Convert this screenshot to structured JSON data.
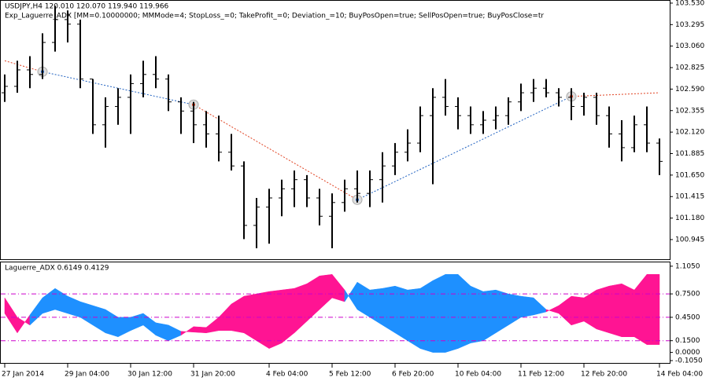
{
  "chart_data": [
    {
      "type": "ohlc",
      "title": "USDJPY,H4  120.010 120.070 119.940 119.966",
      "subtitle": "Exp_Laguerre_ADX [MM=0.10000000; MMMode=4; StopLoss_=0; TakeProfit_=0; Deviation_=10; BuyPosOpen=true; SellPosOpen=true; BuyPosClose=tr",
      "color": "#000000",
      "ohlc": [
        [
          102.55,
          102.75,
          102.45,
          102.62
        ],
        [
          102.62,
          102.9,
          102.55,
          102.8
        ],
        [
          102.8,
          102.95,
          102.6,
          102.75
        ],
        [
          102.75,
          103.2,
          102.7,
          103.1
        ],
        [
          103.1,
          103.5,
          103.0,
          103.35
        ],
        [
          103.35,
          103.45,
          103.1,
          103.3
        ],
        [
          103.3,
          103.35,
          102.6,
          102.7
        ],
        [
          102.7,
          102.7,
          102.1,
          102.2
        ],
        [
          102.2,
          102.5,
          101.95,
          102.4
        ],
        [
          102.4,
          102.6,
          102.2,
          102.5
        ],
        [
          102.5,
          102.75,
          102.1,
          102.65
        ],
        [
          102.65,
          102.9,
          102.5,
          102.75
        ],
        [
          102.75,
          102.95,
          102.6,
          102.7
        ],
        [
          102.7,
          102.75,
          102.35,
          102.45
        ],
        [
          102.45,
          102.5,
          102.1,
          102.35
        ],
        [
          102.35,
          102.45,
          102.0,
          102.2
        ],
        [
          102.2,
          102.35,
          101.95,
          102.1
        ],
        [
          102.1,
          102.3,
          101.8,
          101.9
        ],
        [
          101.9,
          102.1,
          101.7,
          101.75
        ],
        [
          101.75,
          101.8,
          100.95,
          101.1
        ],
        [
          101.1,
          101.4,
          100.85,
          101.3
        ],
        [
          101.3,
          101.5,
          100.9,
          101.4
        ],
        [
          101.4,
          101.6,
          101.2,
          101.5
        ],
        [
          101.5,
          101.7,
          101.3,
          101.6
        ],
        [
          101.6,
          101.65,
          101.3,
          101.4
        ],
        [
          101.4,
          101.5,
          101.1,
          101.2
        ],
        [
          101.2,
          101.45,
          100.85,
          101.35
        ],
        [
          101.35,
          101.6,
          101.25,
          101.5
        ],
        [
          101.5,
          101.7,
          101.35,
          101.45
        ],
        [
          101.45,
          101.7,
          101.3,
          101.6
        ],
        [
          101.6,
          101.9,
          101.35,
          101.75
        ],
        [
          101.75,
          102.0,
          101.65,
          101.9
        ],
        [
          101.9,
          102.15,
          101.8,
          102.0
        ],
        [
          102.0,
          102.4,
          101.9,
          102.3
        ],
        [
          102.3,
          102.6,
          101.55,
          102.5
        ],
        [
          102.5,
          102.7,
          102.3,
          102.4
        ],
        [
          102.4,
          102.5,
          102.15,
          102.3
        ],
        [
          102.3,
          102.4,
          102.1,
          102.2
        ],
        [
          102.2,
          102.35,
          102.1,
          102.25
        ],
        [
          102.25,
          102.4,
          102.15,
          102.3
        ],
        [
          102.3,
          102.5,
          102.2,
          102.45
        ],
        [
          102.45,
          102.65,
          102.35,
          102.55
        ],
        [
          102.55,
          102.7,
          102.45,
          102.6
        ],
        [
          102.6,
          102.7,
          102.5,
          102.55
        ],
        [
          102.55,
          102.6,
          102.4,
          102.5
        ],
        [
          102.5,
          102.6,
          102.25,
          102.4
        ],
        [
          102.4,
          102.55,
          102.3,
          102.5
        ],
        [
          102.5,
          102.55,
          102.2,
          102.3
        ],
        [
          102.3,
          102.4,
          101.95,
          102.1
        ],
        [
          102.1,
          102.25,
          101.8,
          101.95
        ],
        [
          101.95,
          102.3,
          101.9,
          102.2
        ],
        [
          102.2,
          102.4,
          101.9,
          102.0
        ],
        [
          102.0,
          102.05,
          101.65,
          101.8
        ]
      ],
      "categories": [
        "27 Jan 2014",
        null,
        null,
        null,
        null,
        "29 Jan 04:00",
        null,
        null,
        null,
        null,
        "30 Jan 12:00",
        null,
        null,
        null,
        null,
        "31 Jan 20:00",
        null,
        null,
        null,
        null,
        null,
        "4 Feb 04:00",
        null,
        null,
        null,
        null,
        "5 Feb 12:00",
        null,
        null,
        null,
        null,
        "6 Feb 20:00",
        null,
        null,
        null,
        null,
        "10 Feb 04:00",
        null,
        null,
        null,
        null,
        "11 Feb 12:00",
        null,
        null,
        null,
        null,
        "12 Feb 20:00",
        null,
        null,
        null,
        null,
        null,
        "14 Feb 04:00"
      ],
      "trail": {
        "bars": [
          0,
          3,
          15,
          28,
          45,
          52
        ],
        "values": [
          102.9,
          102.78,
          102.42,
          101.38,
          102.51,
          102.55
        ],
        "colors": [
          "#e04020",
          "#1e60c0",
          "#e04020",
          "#1e60c0",
          "#e04020"
        ],
        "markers": [
          1,
          2,
          3,
          4
        ]
      },
      "ylim": [
        100.73,
        103.564
      ],
      "yticks": [
        {
          "value": 103.53,
          "label": "103.530"
        },
        {
          "value": 103.295,
          "label": "103.295"
        },
        {
          "value": 103.06,
          "label": "103.060"
        },
        {
          "value": 102.825,
          "label": "102.825"
        },
        {
          "value": 102.59,
          "label": "102.590"
        },
        {
          "value": 102.355,
          "label": "102.355"
        },
        {
          "value": 102.12,
          "label": "102.120"
        },
        {
          "value": 101.885,
          "label": "101.885"
        },
        {
          "value": 101.65,
          "label": "101.650"
        },
        {
          "value": 101.415,
          "label": "101.415"
        },
        {
          "value": 101.18,
          "label": "101.180"
        },
        {
          "value": 100.945,
          "label": "100.945"
        }
      ]
    },
    {
      "type": "area",
      "title": "Laguerre_ADX 0.6149 0.4129",
      "series": [
        {
          "color": "#ff1493",
          "values": [
            0.7,
            0.45,
            0.35,
            0.5,
            0.55,
            0.5,
            0.45,
            0.35,
            0.25,
            0.2,
            0.28,
            0.35,
            0.22,
            0.15,
            0.22,
            0.33,
            0.32,
            0.45,
            0.62,
            0.72,
            0.75,
            0.78,
            0.8,
            0.82,
            0.88,
            0.98,
            1.0,
            0.8,
            0.55,
            0.45,
            0.35,
            0.25,
            0.15,
            0.05,
            0.0,
            0.0,
            0.05,
            0.12,
            0.15,
            0.25,
            0.35,
            0.45,
            0.48,
            0.52,
            0.6,
            0.72,
            0.7,
            0.8,
            0.85,
            0.88,
            0.8,
            1.0,
            1.0
          ]
        },
        {
          "color": "#1e90ff",
          "values": [
            0.5,
            0.25,
            0.48,
            0.7,
            0.82,
            0.72,
            0.65,
            0.6,
            0.55,
            0.45,
            0.45,
            0.5,
            0.38,
            0.35,
            0.27,
            0.26,
            0.25,
            0.28,
            0.28,
            0.25,
            0.15,
            0.05,
            0.12,
            0.25,
            0.4,
            0.55,
            0.7,
            0.65,
            0.9,
            0.8,
            0.82,
            0.85,
            0.8,
            0.82,
            0.92,
            1.0,
            1.0,
            0.85,
            0.78,
            0.8,
            0.75,
            0.72,
            0.7,
            0.55,
            0.5,
            0.35,
            0.4,
            0.3,
            0.25,
            0.2,
            0.2,
            0.1,
            0.1
          ]
        }
      ],
      "levels": [
        0.75,
        0.45,
        0.15
      ],
      "level_color": "#cc00cc",
      "ylim": [
        -0.135,
        1.164
      ],
      "yticks": [
        {
          "value": 1.105,
          "label": "1.1050"
        },
        {
          "value": 0.75,
          "label": "0.7500"
        },
        {
          "value": 0.45,
          "label": "0.4500"
        },
        {
          "value": 0.15,
          "label": "0.1500"
        },
        {
          "value": 0.0,
          "label": "0.0000"
        },
        {
          "value": -0.105,
          "label": "-0.1050"
        }
      ]
    }
  ]
}
